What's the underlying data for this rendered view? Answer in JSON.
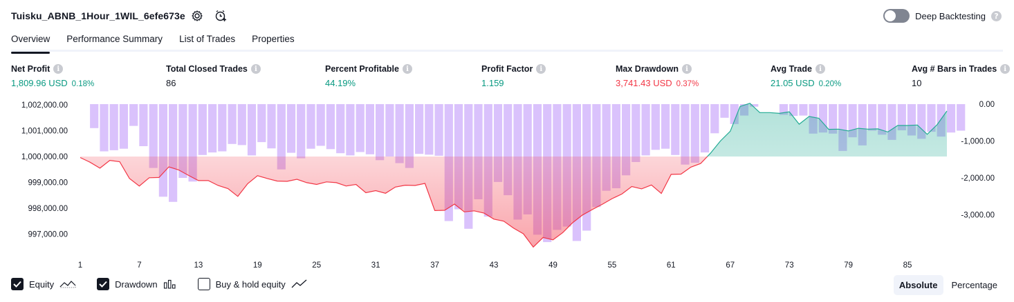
{
  "header": {
    "strategy_title": "Tuisku_ABNB_1Hour_1WIL_6efe673e",
    "deep_backtesting_label": "Deep Backtesting",
    "deep_backtesting_enabled": false
  },
  "tabs": [
    {
      "label": "Overview",
      "active": true
    },
    {
      "label": "Performance Summary",
      "active": false
    },
    {
      "label": "List of Trades",
      "active": false
    },
    {
      "label": "Properties",
      "active": false
    }
  ],
  "stats": [
    {
      "label": "Net Profit",
      "value": "1,809.96 USD",
      "pct": "0.18%",
      "color": "green"
    },
    {
      "label": "Total Closed Trades",
      "value": "86",
      "pct": "",
      "color": "plain"
    },
    {
      "label": "Percent Profitable",
      "value": "44.19%",
      "pct": "",
      "color": "green"
    },
    {
      "label": "Profit Factor",
      "value": "1.159",
      "pct": "",
      "color": "green"
    },
    {
      "label": "Max Drawdown",
      "value": "3,741.43 USD",
      "pct": "0.37%",
      "color": "red"
    },
    {
      "label": "Avg Trade",
      "value": "21.05 USD",
      "pct": "0.20%",
      "color": "green"
    },
    {
      "label": "Avg # Bars in Trades",
      "value": "10",
      "pct": "",
      "color": "plain"
    }
  ],
  "colors": {
    "profit": "#089981",
    "loss": "#f23645",
    "drawdown_bar": "#d1b3fb",
    "equity_up_line": "#22ab94",
    "equity_down_line": "#f23645"
  },
  "chart_data": {
    "type": "area",
    "baseline": 1000000,
    "y_left_ticks": [
      "1,002,000.00",
      "1,001,000.00",
      "1,000,000.00",
      "999,000.00",
      "998,000.00",
      "997,000.00"
    ],
    "y_left_range": [
      996500,
      1002000
    ],
    "y_right_ticks": [
      "0.00",
      "-1,000.00",
      "-2,000.00",
      "-3,000.00"
    ],
    "y_right_range": [
      -3741.43,
      0
    ],
    "x_ticks": [
      "1",
      "7",
      "13",
      "19",
      "25",
      "31",
      "37",
      "43",
      "49",
      "55",
      "61",
      "67",
      "73",
      "79",
      "85"
    ],
    "equity": [
      999960,
      999780,
      999550,
      999850,
      999800,
      999150,
      998860,
      999180,
      999190,
      999600,
      999480,
      999270,
      999070,
      999070,
      998880,
      998760,
      998460,
      998950,
      999260,
      999150,
      999050,
      999040,
      999120,
      998990,
      998920,
      999020,
      998990,
      998860,
      998920,
      998600,
      998680,
      998580,
      998820,
      998890,
      998880,
      998960,
      997910,
      997920,
      998160,
      997860,
      997900,
      997810,
      997580,
      997500,
      997230,
      997010,
      996500,
      996870,
      996780,
      997060,
      997440,
      997740,
      997950,
      998150,
      998370,
      998550,
      998840,
      998750,
      998900,
      998570,
      999310,
      999320,
      999590,
      999730,
      1000130,
      1000600,
      1000980,
      1001940,
      1002060,
      1001700,
      1001700,
      1001670,
      1001730,
      1001250,
      1001550,
      1001480,
      1001050,
      1001060,
      1000990,
      1001090,
      1001060,
      1001070,
      1000950,
      1001200,
      1001200,
      1001220,
      1000860,
      1001230,
      1001760
    ],
    "drawdown": [
      0,
      -650,
      -1280,
      -1250,
      -1210,
      -590,
      -1140,
      -1730,
      -2510,
      -2650,
      -2000,
      -2100,
      -1380,
      -1310,
      -1280,
      -1080,
      -1110,
      -1390,
      -1030,
      -1200,
      -1770,
      -1320,
      -1470,
      -1210,
      -1130,
      -1220,
      -1330,
      -1390,
      -1300,
      -1360,
      -1520,
      -1420,
      -1600,
      -1730,
      -1350,
      -1370,
      -1400,
      -3170,
      -2850,
      -3380,
      -2580,
      -3050,
      -2110,
      -2470,
      -3130,
      -2990,
      -3540,
      -3740,
      -3410,
      -3320,
      -3710,
      -3430,
      -2790,
      -2350,
      -2280,
      -1930,
      -1570,
      -1390,
      -1240,
      -1210,
      -1380,
      -1640,
      -1590,
      -1310,
      -790,
      -370,
      -540,
      -310,
      -70,
      0,
      0,
      -290,
      -320,
      -310,
      -800,
      -770,
      -800,
      -1270,
      -900,
      -1120,
      -720,
      -830,
      -970,
      -710,
      -850,
      -940,
      -750,
      -880,
      -770,
      -720
    ]
  },
  "legend": [
    {
      "label": "Equity",
      "checked": true
    },
    {
      "label": "Drawdown",
      "checked": true
    },
    {
      "label": "Buy & hold equity",
      "checked": false
    }
  ],
  "view_modes": [
    {
      "label": "Absolute",
      "active": true
    },
    {
      "label": "Percentage",
      "active": false
    }
  ]
}
